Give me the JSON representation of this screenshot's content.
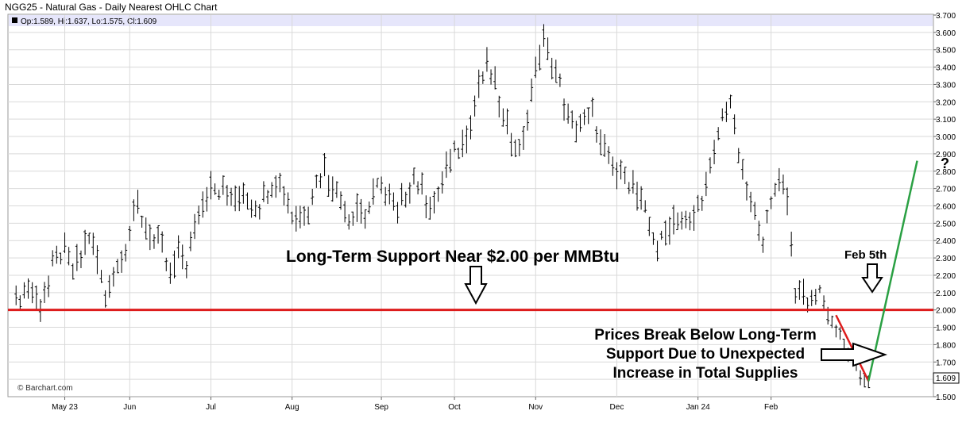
{
  "chart_data": {
    "type": "ohlc",
    "title": "NGG25 - Natural Gas - Daily Nearest OHLC Chart",
    "info_line": "Op:1.589, Hi:1.637, Lo:1.575, Cl:1.609",
    "watermark": "© Barchart.com",
    "last_price_label": "1.609",
    "ylim": [
      1.5,
      3.7
    ],
    "y_ticks": [
      "1.500",
      "1.600",
      "1.700",
      "1.800",
      "1.900",
      "2.000",
      "2.100",
      "2.200",
      "2.300",
      "2.400",
      "2.500",
      "2.600",
      "2.700",
      "2.800",
      "2.900",
      "3.000",
      "3.100",
      "3.200",
      "3.300",
      "3.400",
      "3.500",
      "3.600",
      "3.700"
    ],
    "x_ticks": [
      {
        "label": "May 23",
        "day": 6
      },
      {
        "label": "Jun",
        "day": 14
      },
      {
        "label": "Jul",
        "day": 24
      },
      {
        "label": "Aug",
        "day": 34
      },
      {
        "label": "Sep",
        "day": 45
      },
      {
        "label": "Oct",
        "day": 54
      },
      {
        "label": "Nov",
        "day": 64
      },
      {
        "label": "Jan 24",
        "day": 84
      },
      {
        "label": "Feb",
        "day": 93
      }
    ],
    "x_ticks_unlabeled_extra": [
      {
        "label": "Dec",
        "day": 74
      }
    ],
    "price_path": [
      [
        0,
        2.08
      ],
      [
        2,
        2.12
      ],
      [
        3,
        2.02
      ],
      [
        4,
        2.16
      ],
      [
        5,
        2.32
      ],
      [
        6,
        2.35
      ],
      [
        7,
        2.22
      ],
      [
        8,
        2.3
      ],
      [
        9,
        2.42
      ],
      [
        10,
        2.28
      ],
      [
        11,
        2.1
      ],
      [
        12,
        2.22
      ],
      [
        13,
        2.3
      ],
      [
        14,
        2.44
      ],
      [
        15,
        2.6
      ],
      [
        16,
        2.48
      ],
      [
        17,
        2.4
      ],
      [
        18,
        2.34
      ],
      [
        19,
        2.2
      ],
      [
        20,
        2.32
      ],
      [
        21,
        2.28
      ],
      [
        22,
        2.45
      ],
      [
        23,
        2.62
      ],
      [
        24,
        2.75
      ],
      [
        25,
        2.7
      ],
      [
        26,
        2.66
      ],
      [
        27,
        2.6
      ],
      [
        28,
        2.72
      ],
      [
        29,
        2.58
      ],
      [
        30,
        2.62
      ],
      [
        31,
        2.7
      ],
      [
        32,
        2.74
      ],
      [
        33,
        2.68
      ],
      [
        34,
        2.56
      ],
      [
        35,
        2.52
      ],
      [
        36,
        2.58
      ],
      [
        37,
        2.74
      ],
      [
        38,
        2.8
      ],
      [
        39,
        2.72
      ],
      [
        40,
        2.62
      ],
      [
        41,
        2.55
      ],
      [
        42,
        2.6
      ],
      [
        43,
        2.54
      ],
      [
        44,
        2.66
      ],
      [
        45,
        2.74
      ],
      [
        46,
        2.62
      ],
      [
        47,
        2.56
      ],
      [
        48,
        2.68
      ],
      [
        49,
        2.76
      ],
      [
        50,
        2.7
      ],
      [
        51,
        2.6
      ],
      [
        52,
        2.64
      ],
      [
        53,
        2.82
      ],
      [
        54,
        2.9
      ],
      [
        55,
        2.95
      ],
      [
        56,
        3.1
      ],
      [
        57,
        3.3
      ],
      [
        58,
        3.4
      ],
      [
        59,
        3.3
      ],
      [
        60,
        3.1
      ],
      [
        61,
        3.0
      ],
      [
        62,
        2.94
      ],
      [
        63,
        3.1
      ],
      [
        64,
        3.4
      ],
      [
        65,
        3.55
      ],
      [
        66,
        3.45
      ],
      [
        67,
        3.3
      ],
      [
        68,
        3.1
      ],
      [
        69,
        3.05
      ],
      [
        70,
        3.08
      ],
      [
        71,
        3.15
      ],
      [
        72,
        2.95
      ],
      [
        73,
        2.85
      ],
      [
        74,
        2.78
      ],
      [
        75,
        2.8
      ],
      [
        76,
        2.7
      ],
      [
        77,
        2.6
      ],
      [
        78,
        2.5
      ],
      [
        79,
        2.35
      ],
      [
        80,
        2.45
      ],
      [
        81,
        2.52
      ],
      [
        82,
        2.55
      ],
      [
        83,
        2.48
      ],
      [
        84,
        2.6
      ],
      [
        85,
        2.72
      ],
      [
        86,
        2.9
      ],
      [
        87,
        3.1
      ],
      [
        88,
        3.2
      ],
      [
        89,
        2.9
      ],
      [
        90,
        2.7
      ],
      [
        91,
        2.55
      ],
      [
        92,
        2.4
      ],
      [
        93,
        2.6
      ],
      [
        94,
        2.78
      ],
      [
        95,
        2.65
      ],
      [
        96,
        2.1
      ],
      [
        97,
        2.08
      ],
      [
        98,
        2.05
      ],
      [
        99,
        2.12
      ],
      [
        100,
        1.98
      ],
      [
        101,
        1.88
      ],
      [
        102,
        1.8
      ],
      [
        103,
        1.72
      ],
      [
        104,
        1.62
      ],
      [
        105,
        1.6
      ]
    ],
    "support_level": 2.0,
    "projection_line": {
      "from": [
        105,
        1.59
      ],
      "to": [
        111,
        2.86
      ]
    },
    "decline_line": {
      "from": [
        101,
        1.97
      ],
      "to": [
        105,
        1.59
      ]
    },
    "annotations": {
      "support_text": "Long-Term Support Near $2.00 per MMBtu",
      "feb5_text": "Feb 5th",
      "question_mark": "?",
      "break_text_1": "Prices Break Below Long-Term",
      "break_text_2": "Support Due to Unexpected",
      "break_text_3": "Increase in Total Supplies"
    },
    "colors": {
      "support_line": "#dd1c1c",
      "projection_line": "#2aa043",
      "decline_line": "#dd1c1c",
      "bars": "#000000",
      "info_band": "#e6e6fb",
      "grid": "#d9d9d9"
    }
  }
}
